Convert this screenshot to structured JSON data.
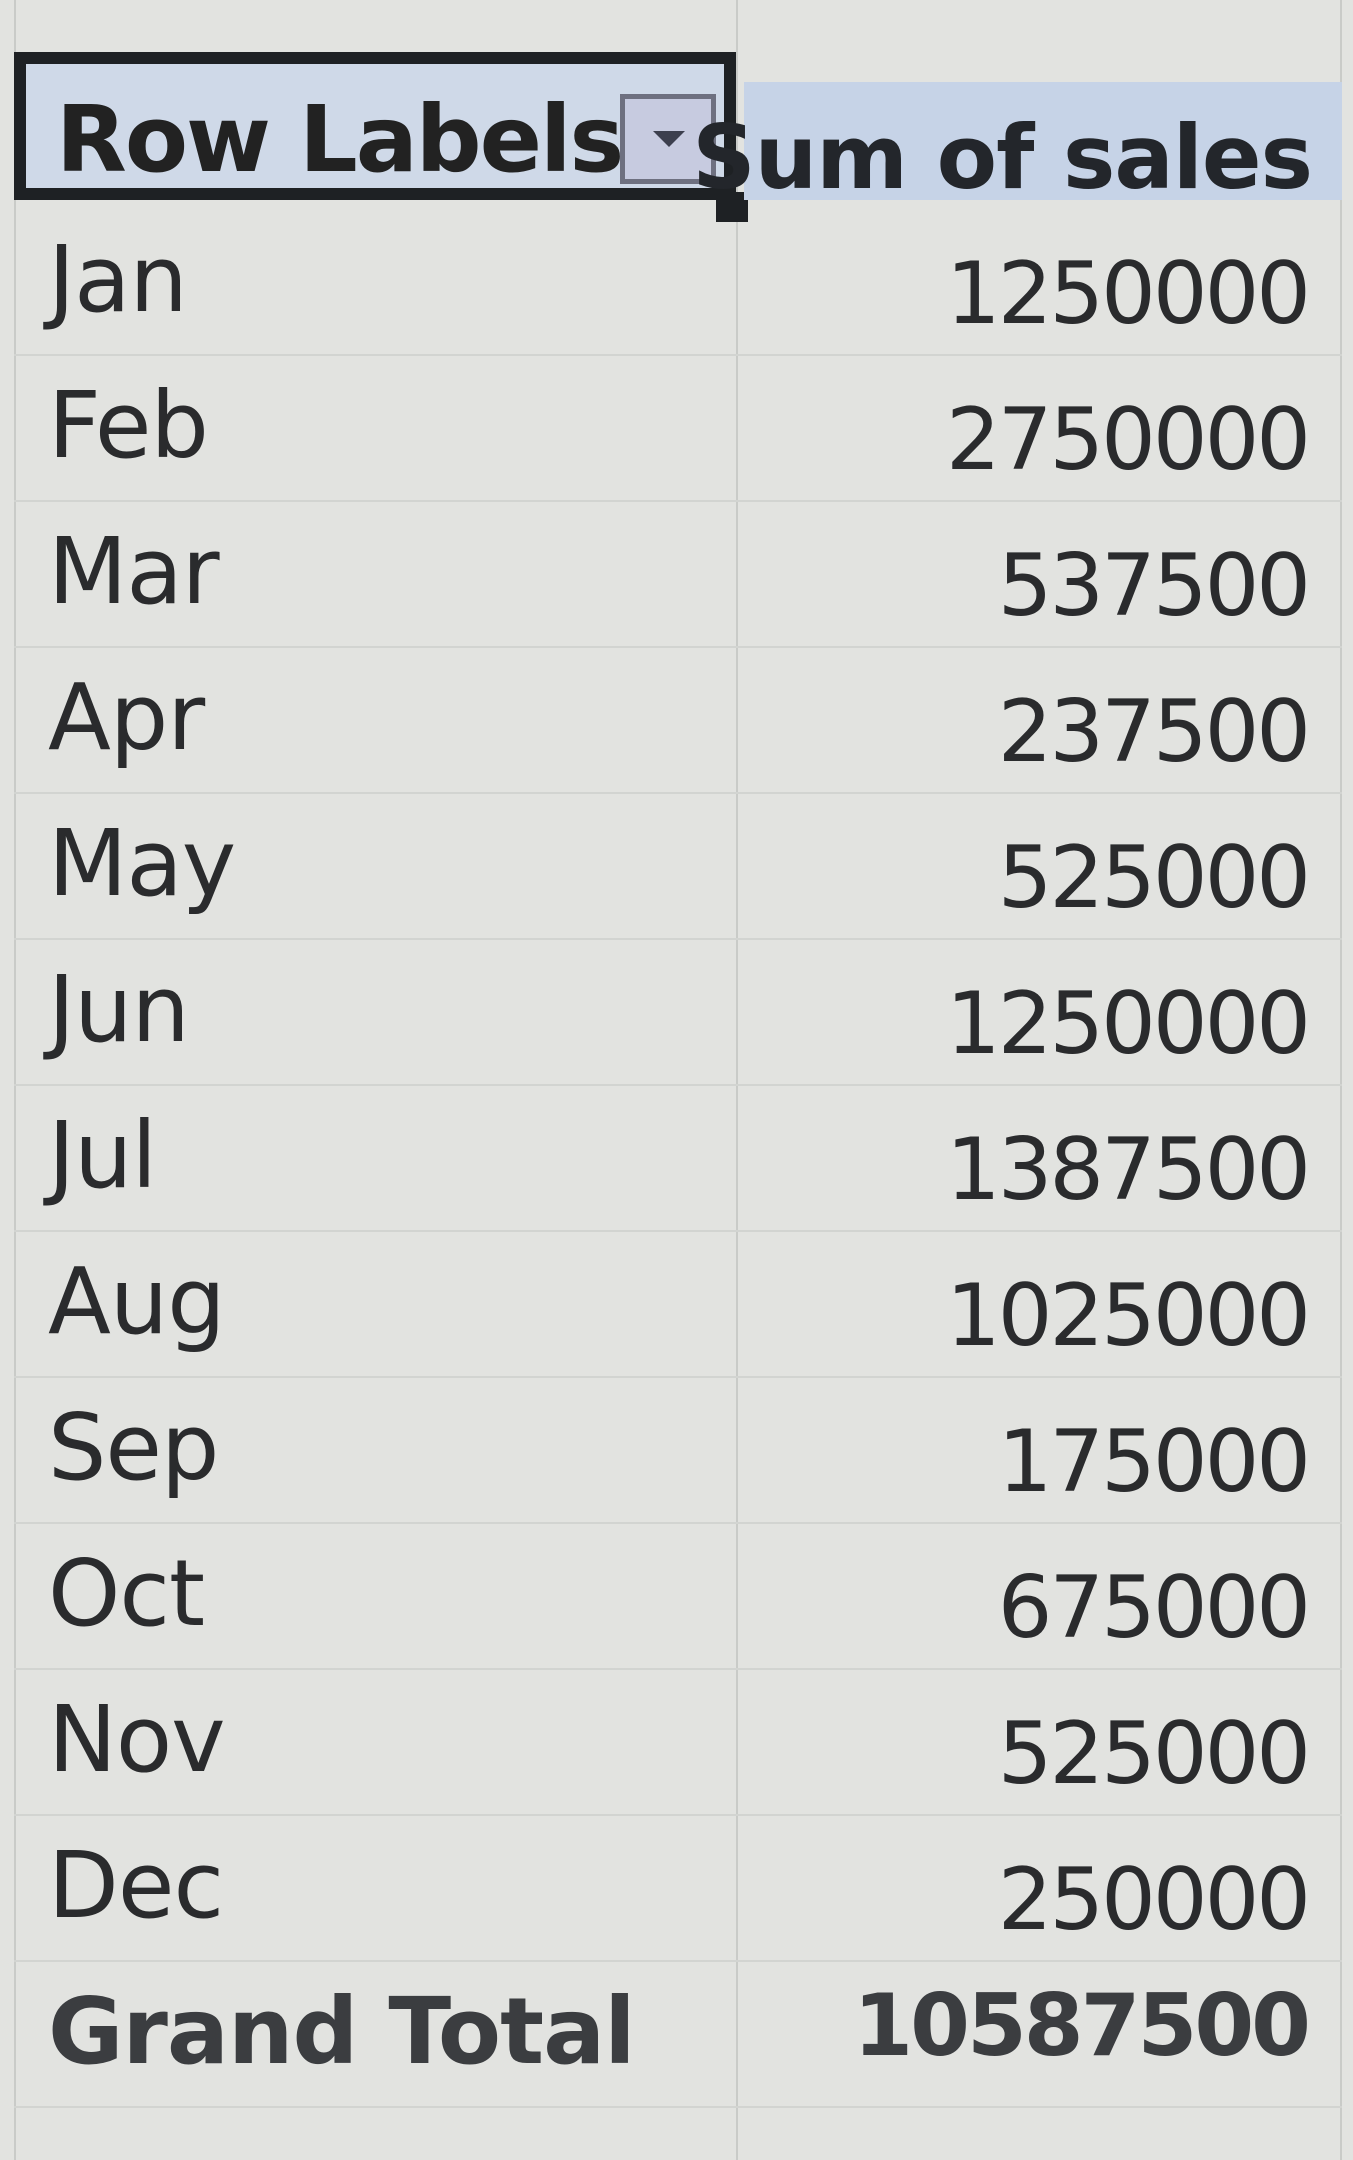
{
  "pivot": {
    "header": {
      "row_labels": "Row Labels",
      "filter_icon": "dropdown-arrow-icon",
      "value_header": "Sum of sales"
    },
    "rows": [
      {
        "label": "Jan",
        "value": "1250000"
      },
      {
        "label": "Feb",
        "value": "2750000"
      },
      {
        "label": "Mar",
        "value": "537500"
      },
      {
        "label": "Apr",
        "value": "237500"
      },
      {
        "label": "May",
        "value": "525000"
      },
      {
        "label": "Jun",
        "value": "1250000"
      },
      {
        "label": "Jul",
        "value": "1387500"
      },
      {
        "label": "Aug",
        "value": "1025000"
      },
      {
        "label": "Sep",
        "value": "175000"
      },
      {
        "label": "Oct",
        "value": "675000"
      },
      {
        "label": "Nov",
        "value": "525000"
      },
      {
        "label": "Dec",
        "value": "250000"
      }
    ],
    "total": {
      "label": "Grand Total",
      "value": "10587500"
    }
  },
  "colors": {
    "header_fill": "#c6d3e7",
    "selection_border": "#1e2124",
    "background": "#e2e3e0"
  }
}
